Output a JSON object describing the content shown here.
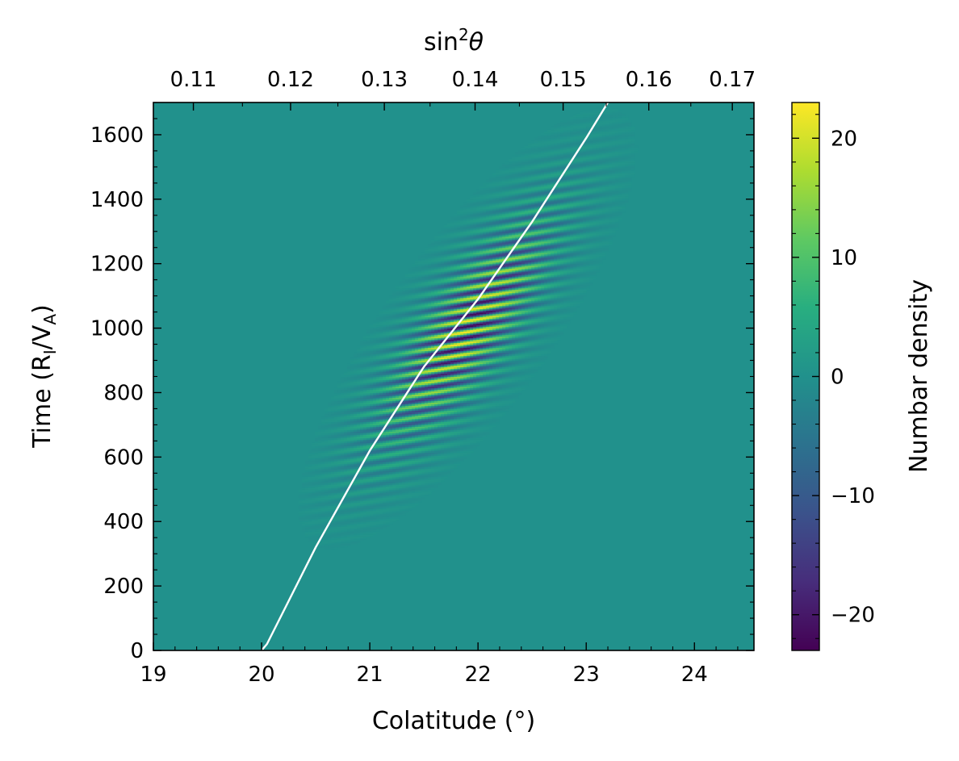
{
  "chart_data": {
    "type": "heatmap",
    "title": "",
    "xlabel": "Colatitude (°)",
    "ylabel_base": "Time (R",
    "ylabel_sub1": "I",
    "ylabel_mid": "/V",
    "ylabel_sub2": "A",
    "ylabel_end": ")",
    "top_xlabel_base": "sin",
    "top_xlabel_sup": "2",
    "top_xlabel_var": "θ",
    "colorbar_label": "Numbar density",
    "xlim": [
      19.0,
      24.55
    ],
    "ylim": [
      0,
      1700
    ],
    "clim": [
      -23,
      23
    ],
    "colormap": "viridis",
    "x_ticks": [
      19,
      20,
      21,
      22,
      23,
      24
    ],
    "x_tick_labels": [
      "19",
      "20",
      "21",
      "22",
      "23",
      "24"
    ],
    "y_ticks": [
      0,
      200,
      400,
      600,
      800,
      1000,
      1200,
      1400,
      1600
    ],
    "y_tick_labels": [
      "0",
      "200",
      "400",
      "600",
      "800",
      "1000",
      "1200",
      "1400",
      "1600"
    ],
    "top_ticks": [
      0.11,
      0.12,
      0.13,
      0.14,
      0.15,
      0.16,
      0.17
    ],
    "top_tick_labels": [
      "0.11",
      "0.12",
      "0.13",
      "0.14",
      "0.15",
      "0.16",
      "0.17"
    ],
    "colorbar_ticks": [
      -20,
      -10,
      0,
      10,
      20
    ],
    "colorbar_tick_labels": [
      "−20",
      "−10",
      "0",
      "10",
      "20"
    ],
    "wave_packet": {
      "center_start": [
        20.05,
        0
      ],
      "center_end": [
        23.2,
        1700
      ],
      "peak_time": 1000,
      "peak_amplitude": 23,
      "stripe_period_time": 38,
      "stripe_tilt_time_per_degree": 60,
      "width_degrees": 0.45,
      "width_time": 340
    },
    "series": [
      {
        "x": [
          20.0,
          20.05,
          20.08,
          20.5,
          21.0,
          21.5,
          22.0,
          22.5,
          23.0,
          23.2
        ],
        "y": [
          0,
          20,
          40,
          320,
          620,
          880,
          1090,
          1330,
          1590,
          1700
        ],
        "color": "#ffffff"
      }
    ],
    "grid": false,
    "legend": "none"
  }
}
